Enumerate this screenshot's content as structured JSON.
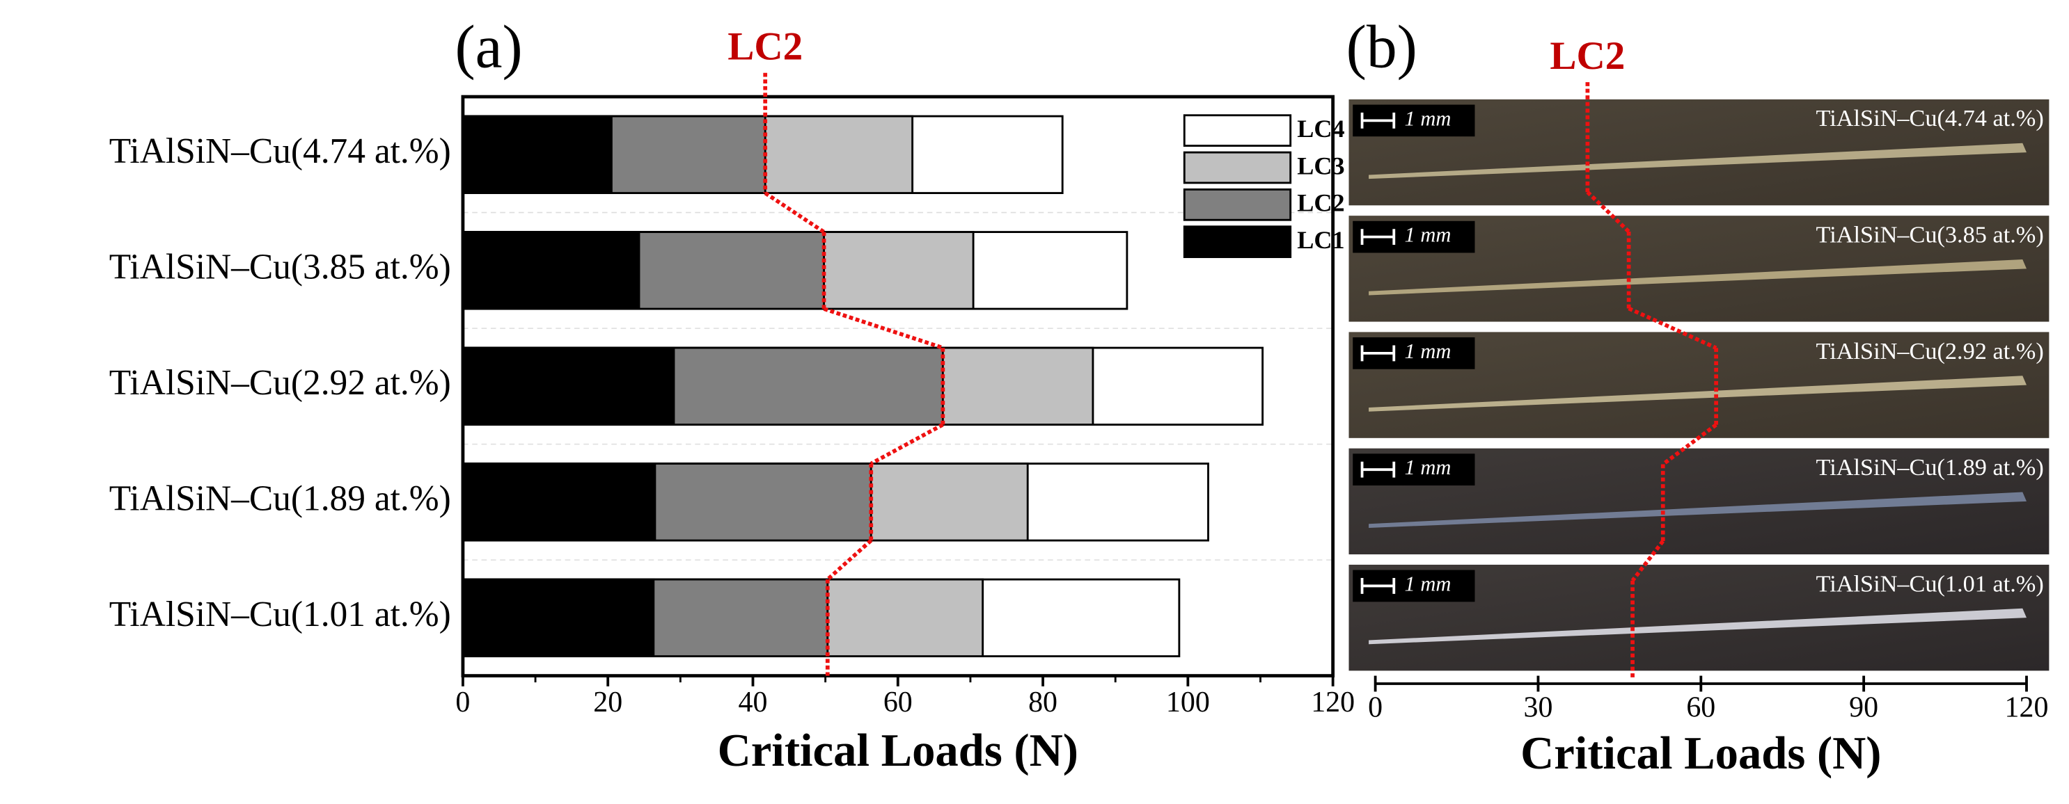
{
  "chart_data": [
    {
      "type": "bar",
      "panel": "(a)",
      "categories": [
        "TiAlSiN–Cu(4.74 at.%)",
        "TiAlSiN–Cu(3.85 at.%)",
        "TiAlSiN–Cu(2.92 at.%)",
        "TiAlSiN–Cu(1.89 at.%)",
        "TiAlSiN–Cu(1.01 at.%)"
      ],
      "series": [
        {
          "name": "LC4",
          "color": "#ffffff",
          "values": [
            82.7,
            91.6,
            110.3,
            102.8,
            98.8
          ]
        },
        {
          "name": "LC3",
          "color": "#c0c0c0",
          "values": [
            62.0,
            70.4,
            86.9,
            77.9,
            71.7
          ]
        },
        {
          "name": "LC2",
          "color": "#808080",
          "values": [
            41.7,
            49.8,
            66.2,
            56.3,
            50.3
          ]
        },
        {
          "name": "LC1",
          "color": "#000000",
          "values": [
            20.5,
            24.3,
            29.1,
            26.5,
            26.3
          ]
        }
      ],
      "xlim": [
        0,
        120
      ],
      "xticks": [
        0,
        20,
        40,
        60,
        80,
        100,
        120
      ],
      "xlabel": "Critical Loads (N)",
      "legend": "top-right",
      "annotation": "LC2",
      "annotation_color": "#c00000",
      "line_color": "#ee1111"
    },
    {
      "type": "scratch-track",
      "panel": "(b)",
      "categories": [
        "TiAlSiN–Cu(4.74 at.%)",
        "TiAlSiN–Cu(3.85 at.%)",
        "TiAlSiN–Cu(2.92 at.%)",
        "TiAlSiN–Cu(1.89 at.%)",
        "TiAlSiN–Cu(1.01 at.%)"
      ],
      "scale_bar": "1 mm",
      "values": [
        39.1,
        46.7,
        62.8,
        53.0,
        47.4
      ],
      "xlim": [
        0,
        120
      ],
      "xticks": [
        0,
        30,
        60,
        90,
        120
      ],
      "xlabel": "Critical Loads (N)",
      "annotation": "LC2",
      "annotation_color": "#c00000",
      "line_color": "#ee1111"
    }
  ]
}
